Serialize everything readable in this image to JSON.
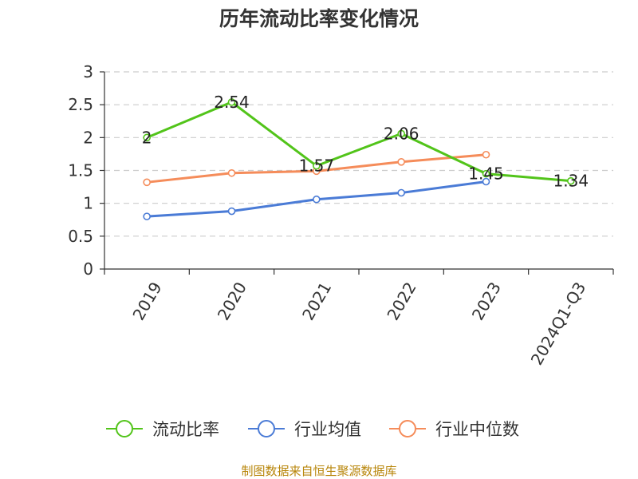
{
  "chart_data": {
    "type": "line",
    "title": "历年流动比率变化情况",
    "xlabel": "",
    "ylabel": "",
    "categories": [
      "2019",
      "2020",
      "2021",
      "2022",
      "2023",
      "2024Q1-Q3"
    ],
    "y_ticks": [
      "0",
      "0.5",
      "1",
      "1.5",
      "2",
      "2.5",
      "3"
    ],
    "ylim": [
      0,
      3
    ],
    "grid": true,
    "legend_position": "bottom",
    "series": [
      {
        "name": "流动比率",
        "color": "#52c41a",
        "values": [
          2,
          2.54,
          1.57,
          2.06,
          1.45,
          1.34
        ],
        "data_labels": [
          "2",
          "2.54",
          "1.57",
          "2.06",
          "1.45",
          "1.34"
        ]
      },
      {
        "name": "行业均值",
        "color": "#4a7bd6",
        "values": [
          0.8,
          0.88,
          1.06,
          1.16,
          1.33,
          null
        ]
      },
      {
        "name": "行业中位数",
        "color": "#f58c5a",
        "values": [
          1.32,
          1.46,
          1.49,
          1.63,
          1.74,
          null
        ]
      }
    ]
  },
  "source": "制图数据来自恒生聚源数据库"
}
